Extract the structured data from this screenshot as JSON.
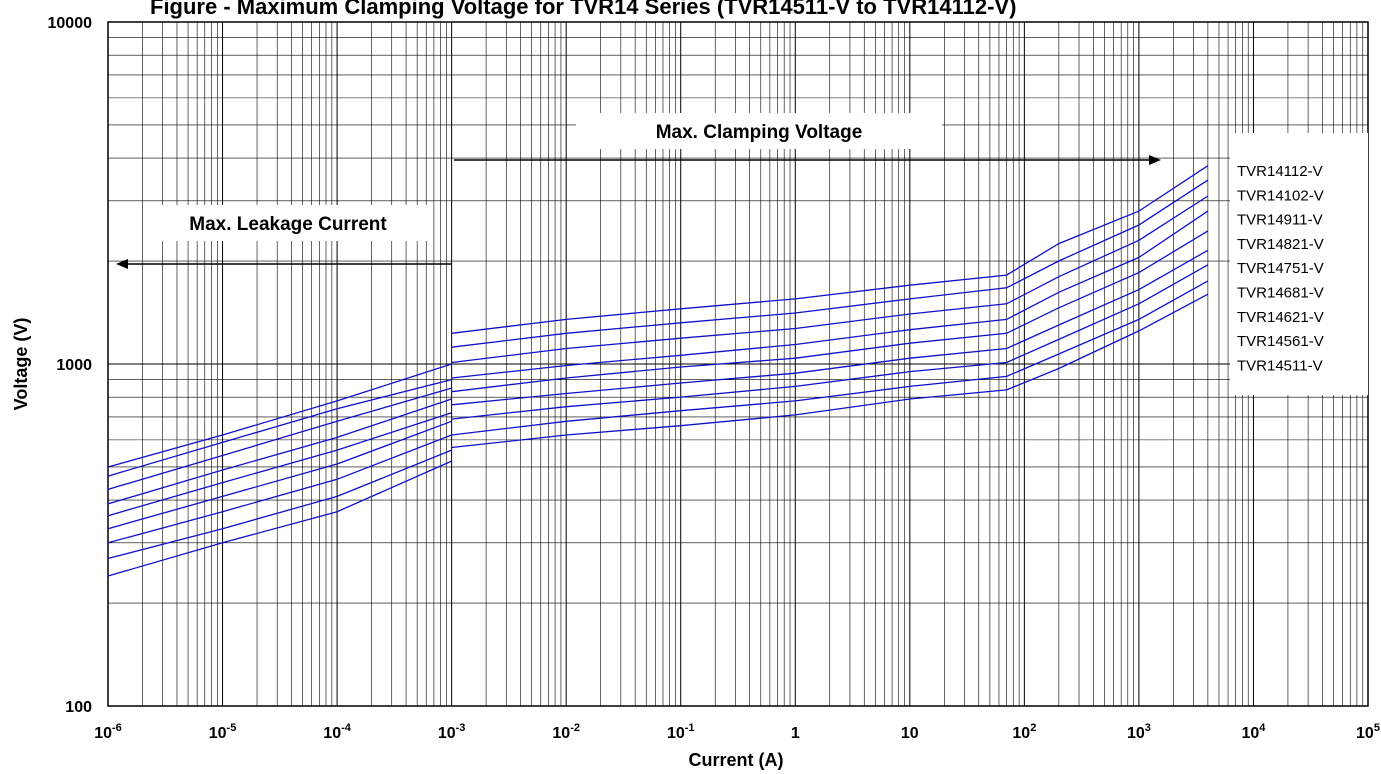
{
  "title": "Figure - Maximum Clamping Voltage for TVR14 Series (TVR14511-V to TVR14112-V)",
  "chart_data": {
    "type": "line",
    "xscale": "log",
    "yscale": "log",
    "xlabel": "Current (A)",
    "ylabel": "Voltage  (V)",
    "xlim": [
      1e-06,
      100000
    ],
    "ylim": [
      100,
      10000
    ],
    "xticks": [
      {
        "base": "10",
        "exp": "-6"
      },
      {
        "base": "10",
        "exp": "-5"
      },
      {
        "base": "10",
        "exp": "-4"
      },
      {
        "base": "10",
        "exp": "-3"
      },
      {
        "base": "10",
        "exp": "-2"
      },
      {
        "base": "10",
        "exp": "-1"
      },
      {
        "base": "1",
        "exp": ""
      },
      {
        "base": "10",
        "exp": ""
      },
      {
        "base": "10",
        "exp": "2"
      },
      {
        "base": "10",
        "exp": "3"
      },
      {
        "base": "10",
        "exp": "4"
      },
      {
        "base": "10",
        "exp": "5"
      }
    ],
    "yticks": [
      "100",
      "1000",
      "10000"
    ],
    "grid": true,
    "legend_position": "right",
    "annotations": {
      "leakage": "Max. Leakage Current",
      "clamping": "Max.  Clamping  Voltage"
    },
    "line_color": "#1010cc",
    "leakage_region": {
      "x": [
        1e-06,
        1e-05,
        0.0001,
        0.001
      ],
      "series": [
        {
          "name": "TVR14112-V",
          "values": [
            500,
            620,
            780,
            1000
          ]
        },
        {
          "name": "TVR14102-V",
          "values": [
            470,
            590,
            740,
            900
          ]
        },
        {
          "name": "TVR14911-V",
          "values": [
            430,
            540,
            680,
            850
          ]
        },
        {
          "name": "TVR14821-V",
          "values": [
            390,
            490,
            610,
            790
          ]
        },
        {
          "name": "TVR14751-V",
          "values": [
            360,
            450,
            560,
            720
          ]
        },
        {
          "name": "TVR14681-V",
          "values": [
            330,
            410,
            510,
            680
          ]
        },
        {
          "name": "TVR14621-V",
          "values": [
            300,
            370,
            460,
            620
          ]
        },
        {
          "name": "TVR14561-V",
          "values": [
            270,
            330,
            410,
            560
          ]
        },
        {
          "name": "TVR14511-V",
          "values": [
            240,
            300,
            370,
            520
          ]
        }
      ]
    },
    "clamping_region": {
      "x": [
        0.001,
        0.01,
        0.1,
        1,
        10,
        70,
        200,
        1000,
        4000
      ],
      "series": [
        {
          "name": "TVR14112-V",
          "values": [
            1230,
            1350,
            1450,
            1550,
            1700,
            1820,
            2250,
            2800,
            3800
          ]
        },
        {
          "name": "TVR14102-V",
          "values": [
            1120,
            1230,
            1320,
            1410,
            1550,
            1670,
            2000,
            2550,
            3450
          ]
        },
        {
          "name": "TVR14911-V",
          "values": [
            1010,
            1110,
            1190,
            1270,
            1400,
            1500,
            1800,
            2300,
            3100
          ]
        },
        {
          "name": "TVR14821-V",
          "values": [
            910,
            990,
            1060,
            1140,
            1260,
            1350,
            1620,
            2050,
            2800
          ]
        },
        {
          "name": "TVR14751-V",
          "values": [
            830,
            910,
            980,
            1040,
            1150,
            1230,
            1460,
            1850,
            2450
          ]
        },
        {
          "name": "TVR14681-V",
          "values": [
            760,
            820,
            880,
            940,
            1040,
            1110,
            1300,
            1650,
            2150
          ]
        },
        {
          "name": "TVR14621-V",
          "values": [
            690,
            750,
            800,
            860,
            950,
            1010,
            1180,
            1500,
            1950
          ]
        },
        {
          "name": "TVR14561-V",
          "values": [
            620,
            680,
            730,
            780,
            860,
            920,
            1070,
            1350,
            1750
          ]
        },
        {
          "name": "TVR14511-V",
          "values": [
            570,
            620,
            660,
            710,
            790,
            840,
            970,
            1250,
            1600
          ]
        }
      ]
    }
  }
}
